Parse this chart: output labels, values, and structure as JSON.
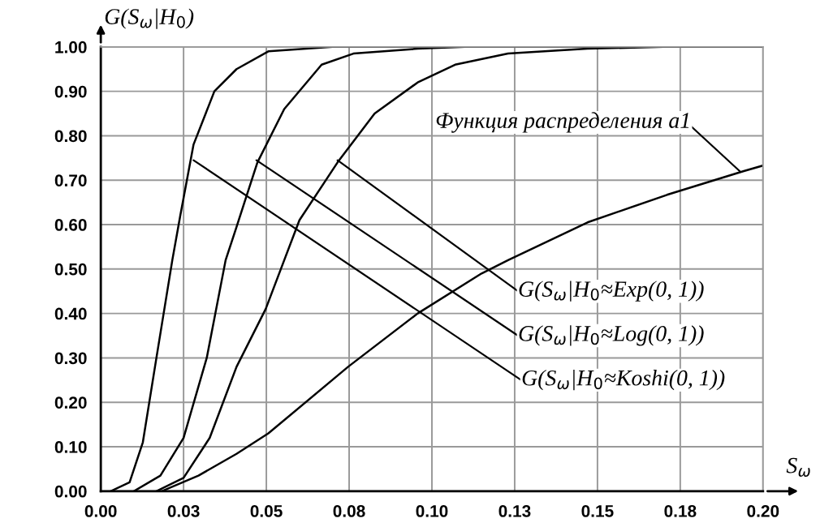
{
  "chart_data": {
    "type": "line",
    "xlabel": "S$_{ω}$",
    "ylabel": "G(S$_{ω}$|H$_{0}$)",
    "xlim": [
      0,
      0.2
    ],
    "ylim": [
      0,
      1
    ],
    "xticks": [
      {
        "value": 0,
        "label": "0.00"
      },
      {
        "value": 0.025,
        "label": "0.03"
      },
      {
        "value": 0.05,
        "label": "0.05"
      },
      {
        "value": 0.075,
        "label": "0.08"
      },
      {
        "value": 0.1,
        "label": "0.10"
      },
      {
        "value": 0.125,
        "label": "0.13"
      },
      {
        "value": 0.15,
        "label": "0.15"
      },
      {
        "value": 0.175,
        "label": "0.18"
      },
      {
        "value": 0.2,
        "label": "0.20"
      }
    ],
    "yticks": [
      {
        "value": 0,
        "label": "0.00"
      },
      {
        "value": 0.1,
        "label": "0.10"
      },
      {
        "value": 0.2,
        "label": "0.20"
      },
      {
        "value": 0.3,
        "label": "0.30"
      },
      {
        "value": 0.4,
        "label": "0.40"
      },
      {
        "value": 0.5,
        "label": "0.50"
      },
      {
        "value": 0.6,
        "label": "0.60"
      },
      {
        "value": 0.7,
        "label": "0.70"
      },
      {
        "value": 0.8,
        "label": "0.80"
      },
      {
        "value": 0.9,
        "label": "0.90"
      },
      {
        "value": 1,
        "label": "1.00"
      }
    ],
    "grid": true,
    "marker": "none",
    "line_style": "solid",
    "series": [
      {
        "color": "#000000",
        "x": [
          0.003,
          0.0087,
          0.0127,
          0.0168,
          0.0216,
          0.024,
          0.028,
          0.0343,
          0.041,
          0.0506,
          0.07,
          0.2
        ],
        "values": [
          0,
          0.02,
          0.11,
          0.3,
          0.52,
          0.62,
          0.78,
          0.9,
          0.95,
          0.99,
          1,
          1
        ]
      },
      {
        "color": "#000000",
        "x": [
          0.01,
          0.018,
          0.025,
          0.032,
          0.0377,
          0.041,
          0.0473,
          0.0554,
          0.0667,
          0.0763,
          0.0957,
          0.11,
          0.2
        ],
        "values": [
          0,
          0.035,
          0.12,
          0.3,
          0.52,
          0.595,
          0.74,
          0.86,
          0.96,
          0.985,
          0.996,
          1,
          1
        ]
      },
      {
        "color": "#000000",
        "x": [
          0.0168,
          0.025,
          0.0329,
          0.041,
          0.0498,
          0.0554,
          0.06,
          0.0715,
          0.0827,
          0.0957,
          0.107,
          0.123,
          0.147,
          0.17,
          0.2
        ],
        "values": [
          0,
          0.03,
          0.12,
          0.28,
          0.41,
          0.52,
          0.61,
          0.74,
          0.85,
          0.92,
          0.96,
          0.985,
          0.996,
          1,
          1
        ]
      },
      {
        "color": "#000000",
        "x": [
          0.0184,
          0.0295,
          0.041,
          0.0506,
          0.0747,
          0.0957,
          0.115,
          0.123,
          0.147,
          0.171,
          0.194,
          0.2
        ],
        "values": [
          0,
          0.035,
          0.084,
          0.13,
          0.28,
          0.4,
          0.49,
          0.52,
          0.605,
          0.667,
          0.72,
          0.733
        ]
      }
    ],
    "annotations": [
      {
        "text": "G(S$_{ω}$|H$_{0}$≈Exp(0, 1))",
        "x": 0.0715,
        "y": 0.745
      },
      {
        "text": "G(S$_{ω}$|H$_{0}$≈Log(0, 1))",
        "x": 0.047,
        "y": 0.745
      },
      {
        "text": "G(S$_{ω}$|H$_{0}$≈Koshi(0, 1))",
        "x": 0.028,
        "y": 0.745
      },
      {
        "text": "Функция распределения a1",
        "x": 0.193,
        "y": 0.72
      }
    ]
  }
}
